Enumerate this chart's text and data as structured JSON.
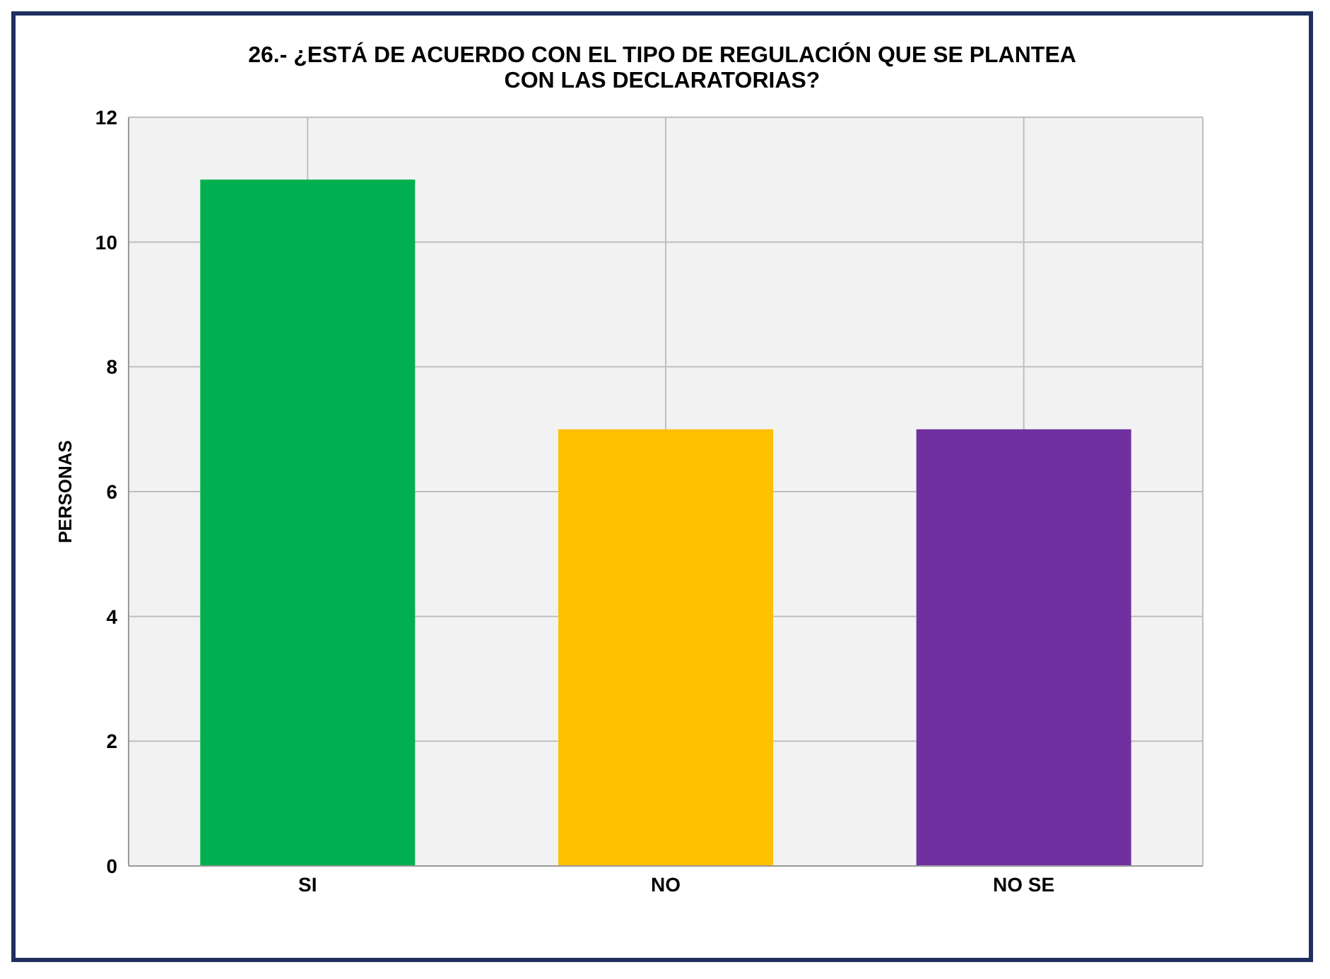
{
  "chart_data": {
    "type": "bar",
    "title": "26.- ¿ESTÁ DE ACUERDO CON EL TIPO DE REGULACIÓN QUE SE PLANTEA CON LAS DECLARATORIAS?",
    "ylabel": "PERSONAS",
    "categories": [
      "SI",
      "NO",
      "NO SE"
    ],
    "values": [
      11,
      7,
      7
    ],
    "colors": [
      "#00b050",
      "#ffc000",
      "#7030a0"
    ],
    "ylim": [
      0,
      12
    ],
    "yticks": [
      0,
      2,
      4,
      6,
      8,
      10,
      12
    ],
    "grid": true,
    "legend": false
  }
}
